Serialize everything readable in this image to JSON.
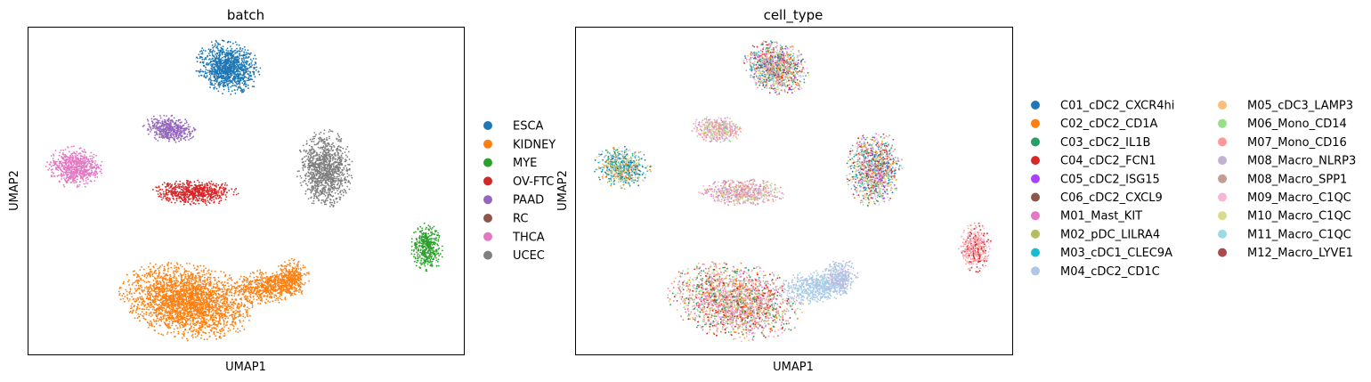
{
  "chart_data": [
    {
      "type": "scatter",
      "title": "batch",
      "xlabel": "UMAP1",
      "ylabel": "UMAP2",
      "grid": false,
      "ticks": "none",
      "legend_placement": "right",
      "legend": [
        {
          "label": "ESCA",
          "color": "#1f77b4"
        },
        {
          "label": "KIDNEY",
          "color": "#ff7f0e"
        },
        {
          "label": "MYE",
          "color": "#2ca02c"
        },
        {
          "label": "OV-FTC",
          "color": "#d62728"
        },
        {
          "label": "PAAD",
          "color": "#9467bd"
        },
        {
          "label": "RC",
          "color": "#8c564b"
        },
        {
          "label": "THCA",
          "color": "#e377c2"
        },
        {
          "label": "UCEC",
          "color": "#7f7f7f"
        }
      ],
      "clusters": [
        {
          "category": "ESCA",
          "region": "top-center",
          "relative_size": "medium"
        },
        {
          "category": "PAAD",
          "region": "upper-left-center",
          "relative_size": "small"
        },
        {
          "category": "THCA",
          "region": "left",
          "relative_size": "small"
        },
        {
          "category": "OV-FTC",
          "region": "center",
          "relative_size": "small"
        },
        {
          "category": "UCEC",
          "region": "right",
          "relative_size": "medium"
        },
        {
          "category": "MYE",
          "region": "far-right",
          "relative_size": "small"
        },
        {
          "category": "KIDNEY",
          "region": "bottom",
          "relative_size": "large"
        }
      ]
    },
    {
      "type": "scatter",
      "title": "cell_type",
      "xlabel": "UMAP1",
      "ylabel": "UMAP2",
      "grid": false,
      "ticks": "none",
      "legend_placement": "right",
      "legend": [
        {
          "label": "C01_cDC2_CXCR4hi",
          "color": "#1f77b4"
        },
        {
          "label": "C02_cDC2_CD1A",
          "color": "#ff7f0e"
        },
        {
          "label": "C03_cDC2_IL1B",
          "color": "#279e68"
        },
        {
          "label": "C04_cDC2_FCN1",
          "color": "#d62728"
        },
        {
          "label": "C05_cDC2_ISG15",
          "color": "#aa40fc"
        },
        {
          "label": "C06_cDC2_CXCL9",
          "color": "#8c564b"
        },
        {
          "label": "M01_Mast_KIT",
          "color": "#e377c2"
        },
        {
          "label": "M02_pDC_LILRA4",
          "color": "#b5bd61"
        },
        {
          "label": "M03_cDC1_CLEC9A",
          "color": "#17becf"
        },
        {
          "label": "M04_cDC2_CD1C",
          "color": "#aec7e8"
        },
        {
          "label": "M05_cDC3_LAMP3",
          "color": "#ffbb78"
        },
        {
          "label": "M06_Mono_CD14",
          "color": "#98df8a"
        },
        {
          "label": "M07_Mono_CD16",
          "color": "#ff9896"
        },
        {
          "label": "M08_Macro_NLRP3",
          "color": "#c5b0d5"
        },
        {
          "label": "M08_Macro_SPP1",
          "color": "#c49c94"
        },
        {
          "label": "M09_Macro_C1QC",
          "color": "#f7b6d2"
        },
        {
          "label": "M10_Macro_C1QC",
          "color": "#dbdb8d"
        },
        {
          "label": "M11_Macro_C1QC",
          "color": "#9edae5"
        },
        {
          "label": "M12_Macro_LYVE1",
          "color": "#ad494a"
        }
      ]
    }
  ]
}
